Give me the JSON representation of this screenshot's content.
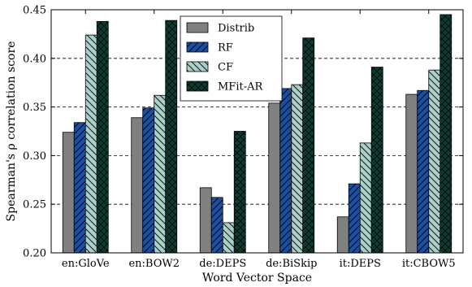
{
  "chart_data": {
    "type": "bar",
    "title": "",
    "xlabel": "Word Vector Space",
    "ylabel": "Spearman's ρ correlation score",
    "ylim": [
      0.2,
      0.45
    ],
    "yticks": [
      "0.20",
      "0.25",
      "0.30",
      "0.35",
      "0.40",
      "0.45"
    ],
    "grid": "horizontal dashed",
    "legend_position": "top-center",
    "categories": [
      "en:GloVe",
      "en:BOW2",
      "de:DEPS",
      "de:BiSkip",
      "it:DEPS",
      "it:CBOW5"
    ],
    "series": [
      {
        "name": "Distrib",
        "color": "#808080",
        "pattern": "none",
        "values": [
          0.324,
          0.339,
          0.267,
          0.354,
          0.237,
          0.363
        ]
      },
      {
        "name": "RF",
        "color": "#1f4e9c",
        "pattern": "hatch-up",
        "values": [
          0.334,
          0.349,
          0.257,
          0.369,
          0.271,
          0.367
        ]
      },
      {
        "name": "CF",
        "color": "#a9cfca",
        "pattern": "hatch-down",
        "values": [
          0.424,
          0.362,
          0.231,
          0.373,
          0.313,
          0.388
        ]
      },
      {
        "name": "MFit-AR",
        "color": "#0e3a32",
        "pattern": "crosshatch",
        "values": [
          0.438,
          0.439,
          0.325,
          0.421,
          0.391,
          0.445
        ]
      }
    ]
  }
}
